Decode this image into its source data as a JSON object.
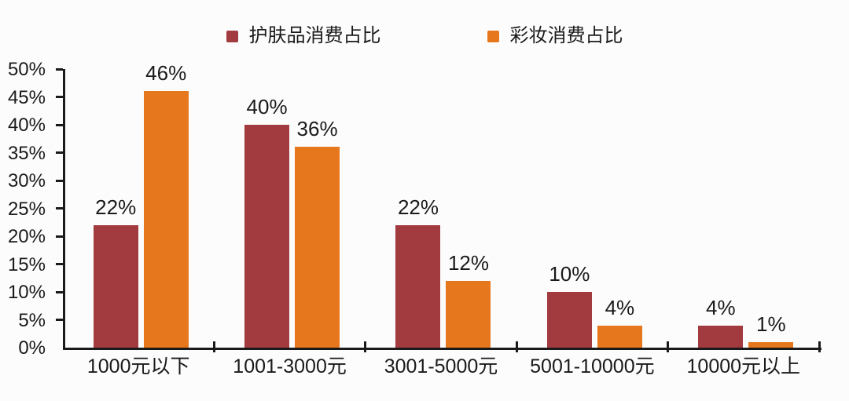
{
  "chart_data": {
    "type": "bar",
    "title": "",
    "xlabel": "",
    "ylabel": "",
    "categories": [
      "1000元以下",
      "1001-3000元",
      "3001-5000元",
      "5001-10000元",
      "10000元以上"
    ],
    "series": [
      {
        "name": "护肤品消费占比",
        "color": "#A23B40",
        "values": [
          22,
          40,
          22,
          10,
          4
        ]
      },
      {
        "name": "彩妆消费占比",
        "color": "#E7771C",
        "values": [
          46,
          36,
          12,
          4,
          1
        ]
      }
    ],
    "value_suffix": "%",
    "data_labels": [
      "22%",
      "46%",
      "40%",
      "36%",
      "22%",
      "12%",
      "10%",
      "4%",
      "4%",
      "1%"
    ],
    "ylim": [
      0,
      50
    ],
    "ytick_step": 5,
    "ytick_labels": [
      "0%",
      "5%",
      "10%",
      "15%",
      "20%",
      "25%",
      "30%",
      "35%",
      "40%",
      "45%",
      "50%"
    ],
    "grid": false,
    "legend_position": "top-center"
  },
  "colors": {
    "background": "#FCFCFC",
    "axis": "#1A1A1A",
    "text": "#1A1A1A",
    "series_skincare": "#A23B40",
    "series_makeup": "#E7771C"
  }
}
